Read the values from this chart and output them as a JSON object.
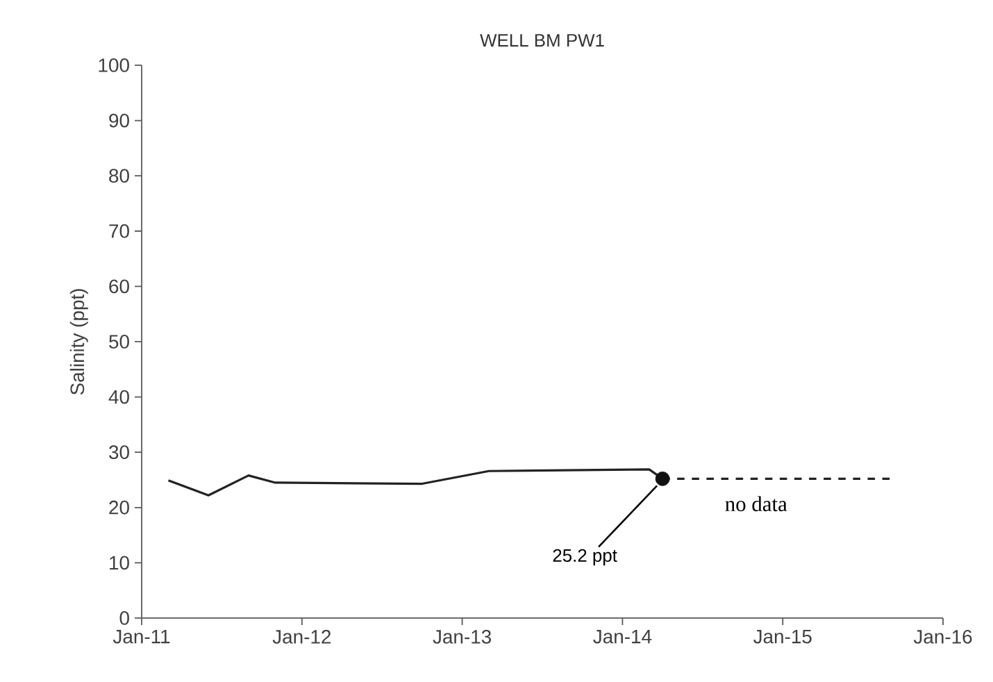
{
  "chart_data": {
    "type": "line",
    "title": "WELL BM PW1",
    "ylabel": "Salinity (ppt)",
    "series": [
      {
        "color": "#222222",
        "x": [
          "2011-03",
          "2011-06",
          "2011-09",
          "2011-11",
          "2012-10",
          "2013-03",
          "2014-03",
          "2014-04"
        ],
        "values": [
          24.9,
          22.2,
          25.8,
          24.5,
          24.3,
          26.6,
          26.9,
          25.2
        ]
      },
      {
        "type": "scatter",
        "color": "#111111",
        "marker": "circle",
        "x": [
          "2014-04"
        ],
        "values": [
          25.2
        ]
      },
      {
        "type": "line",
        "color": "#222222",
        "line_style": "dashed",
        "x": [
          "2014-04",
          "2015-09"
        ],
        "values": [
          25.2,
          25.2
        ]
      }
    ],
    "annotations": [
      {
        "text": "25.2 ppt",
        "x": "2014-04",
        "y": 25.2
      },
      {
        "text": "no data",
        "x": "2014-11",
        "y": 25.2
      }
    ],
    "xlim": [
      "2011-01",
      "2016-01"
    ],
    "xticks": [
      {
        "value": "2011-01",
        "label": "Jan-11"
      },
      {
        "value": "2012-01",
        "label": "Jan-12"
      },
      {
        "value": "2013-01",
        "label": "Jan-13"
      },
      {
        "value": "2014-01",
        "label": "Jan-14"
      },
      {
        "value": "2015-01",
        "label": "Jan-15"
      },
      {
        "value": "2016-01",
        "label": "Jan-16"
      }
    ],
    "ylim": [
      0,
      100
    ],
    "yticks": [
      0,
      10,
      20,
      30,
      40,
      50,
      60,
      70,
      80,
      90,
      100
    ],
    "grid": false,
    "marker": "none",
    "line_style": "solid"
  }
}
